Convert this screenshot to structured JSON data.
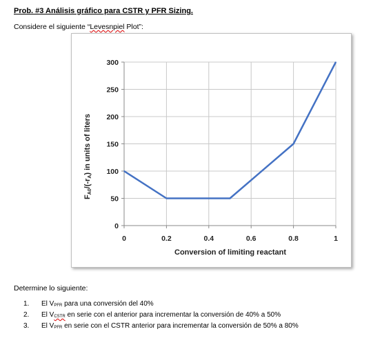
{
  "problem": {
    "title": "Prob. #3 Análisis gráfico para CSTR y PFR Sizing.",
    "intro_prefix": "Considere el siguiente “",
    "intro_term": "Levesnpiel",
    "intro_suffix": " Plot”:"
  },
  "chart_data": {
    "type": "line",
    "title": "",
    "xlabel": "Conversion of limiting reactant",
    "ylabel": "F",
    "ylabel_sub": "A0",
    "ylabel_mid": "/(-r",
    "ylabel_sub2": "A",
    "ylabel_end": ") in units of liters",
    "xlim": [
      0,
      1
    ],
    "ylim": [
      0,
      300
    ],
    "xticks": [
      "0",
      "0.2",
      "0.4",
      "0.6",
      "0.8",
      "1"
    ],
    "xtick_values": [
      0,
      0.2,
      0.4,
      0.6,
      0.8,
      1
    ],
    "yticks": [
      "0",
      "50",
      "100",
      "150",
      "200",
      "250",
      "300"
    ],
    "ytick_values": [
      0,
      50,
      100,
      150,
      200,
      250,
      300
    ],
    "grid": true,
    "line_color": "#4472c4",
    "series": [
      {
        "x": [
          0,
          0.2,
          0.5,
          0.8,
          1.0
        ],
        "y": [
          100,
          50,
          50,
          150,
          300
        ]
      }
    ]
  },
  "questions": {
    "heading": "Determine lo siguiente:",
    "items": [
      {
        "num": "1.",
        "pre": "El V",
        "sub": "PFR",
        "post": " para una conversión del 40%"
      },
      {
        "num": "2.",
        "pre": "El V",
        "sub": "CSTR",
        "post": " en serie con el anterior para incrementar la conversión de 40% a 50%"
      },
      {
        "num": "3.",
        "pre": "El V",
        "sub": "PFR",
        "post": " en serie con el CSTR anterior para incrementar la conversión de 50% a 80%"
      }
    ]
  }
}
